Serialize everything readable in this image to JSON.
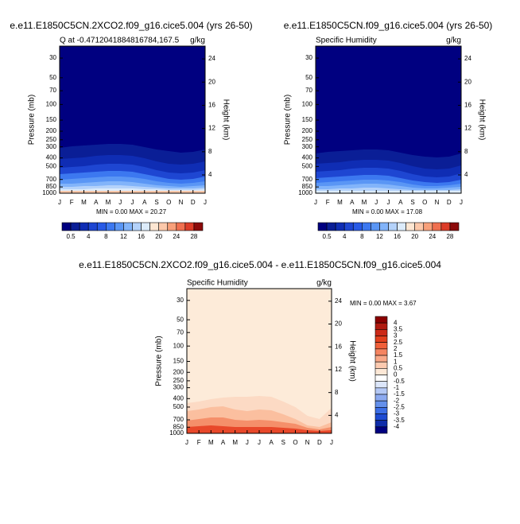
{
  "chart_data": [
    {
      "type": "contour",
      "title": "e.e11.E1850C5CN.2XCO2.f09_g16.cice5.004 (yrs 26-50)",
      "subtitle": "Q at -0.4712041884816784,167.5",
      "units": "g/kg",
      "ylabel": "Pressure (mb)",
      "y2label": "Height (km)",
      "categories": [
        "J",
        "F",
        "M",
        "A",
        "M",
        "J",
        "J",
        "A",
        "S",
        "O",
        "N",
        "D",
        "J"
      ],
      "ylim": [
        1000,
        22
      ],
      "log_y": true,
      "yticks": [
        30,
        50,
        70,
        100,
        150,
        200,
        250,
        300,
        400,
        500,
        700,
        850,
        1000
      ],
      "y2lim": [
        0.85,
        26.2
      ],
      "y2ticks": [
        4,
        8,
        12,
        16,
        20,
        24
      ],
      "stats": "MIN =  0.00 MAX = 20.27",
      "colorbar": {
        "orientation": "horizontal",
        "labels": [
          0.5,
          4,
          8,
          12,
          16,
          20,
          24,
          28
        ],
        "colors": [
          "#000080",
          "#0a1e96",
          "#0f2db4",
          "#1e46d2",
          "#285ae6",
          "#3c78f0",
          "#5a96f5",
          "#82b4fa",
          "#b4d2fa",
          "#dcebfa",
          "#fde6d2",
          "#fcc8aa",
          "#f8a07a",
          "#f07050",
          "#dc3c28",
          "#8c0a0a"
        ]
      }
    },
    {
      "type": "contour",
      "title": "e.e11.E1850C5CN.f09_g16.cice5.004 (yrs 26-50)",
      "subtitle": "Specific Humidity",
      "units": "g/kg",
      "ylabel": "Pressure (mb)",
      "y2label": "Height (km)",
      "categories": [
        "J",
        "F",
        "M",
        "A",
        "M",
        "J",
        "J",
        "A",
        "S",
        "O",
        "N",
        "D",
        "J"
      ],
      "ylim": [
        1000,
        22
      ],
      "log_y": true,
      "yticks": [
        30,
        50,
        70,
        100,
        150,
        200,
        250,
        300,
        400,
        500,
        700,
        850,
        1000
      ],
      "y2lim": [
        0.85,
        26.2
      ],
      "y2ticks": [
        4,
        8,
        12,
        16,
        20,
        24
      ],
      "stats": "MIN =  0.00 MAX = 17.08",
      "colorbar": {
        "orientation": "horizontal",
        "labels": [
          0.5,
          4,
          8,
          12,
          16,
          20,
          24,
          28
        ],
        "colors": [
          "#000080",
          "#0a1e96",
          "#0f2db4",
          "#1e46d2",
          "#285ae6",
          "#3c78f0",
          "#5a96f5",
          "#82b4fa",
          "#b4d2fa",
          "#dcebfa",
          "#fde6d2",
          "#fcc8aa",
          "#f8a07a",
          "#f07050",
          "#dc3c28",
          "#8c0a0a"
        ]
      }
    },
    {
      "type": "contour",
      "title": "e.e11.E1850C5CN.2XCO2.f09_g16.cice5.004 - e.e11.E1850C5CN.f09_g16.cice5.004",
      "subtitle": "Specific Humidity",
      "units": "g/kg",
      "ylabel": "Pressure (mb)",
      "y2label": "Height (km)",
      "categories": [
        "J",
        "F",
        "M",
        "A",
        "M",
        "J",
        "J",
        "A",
        "S",
        "O",
        "N",
        "D",
        "J"
      ],
      "ylim": [
        1000,
        22
      ],
      "log_y": true,
      "yticks": [
        30,
        50,
        70,
        100,
        150,
        200,
        250,
        300,
        400,
        500,
        700,
        850,
        1000
      ],
      "y2lim": [
        0.85,
        26.2
      ],
      "y2ticks": [
        4,
        8,
        12,
        16,
        20,
        24
      ],
      "stats": "MIN =  0.00 MAX =   3.67",
      "colorbar": {
        "orientation": "vertical",
        "labels": [
          4,
          3.5,
          3,
          2.5,
          2,
          1.5,
          1,
          0.5,
          0,
          -0.5,
          -1,
          -1.5,
          -2,
          -2.5,
          -3,
          -3.5,
          -4
        ],
        "colors": [
          "#8b0000",
          "#b01a10",
          "#cc2a18",
          "#e2401e",
          "#f0603a",
          "#f58460",
          "#f9a888",
          "#fccab0",
          "#fde8d6",
          "#ffffff",
          "#dce6fa",
          "#b4c8f5",
          "#8caaf0",
          "#6490eb",
          "#3c6ee6",
          "#1e4bd2",
          "#0f2daa",
          "#000080"
        ]
      }
    }
  ]
}
